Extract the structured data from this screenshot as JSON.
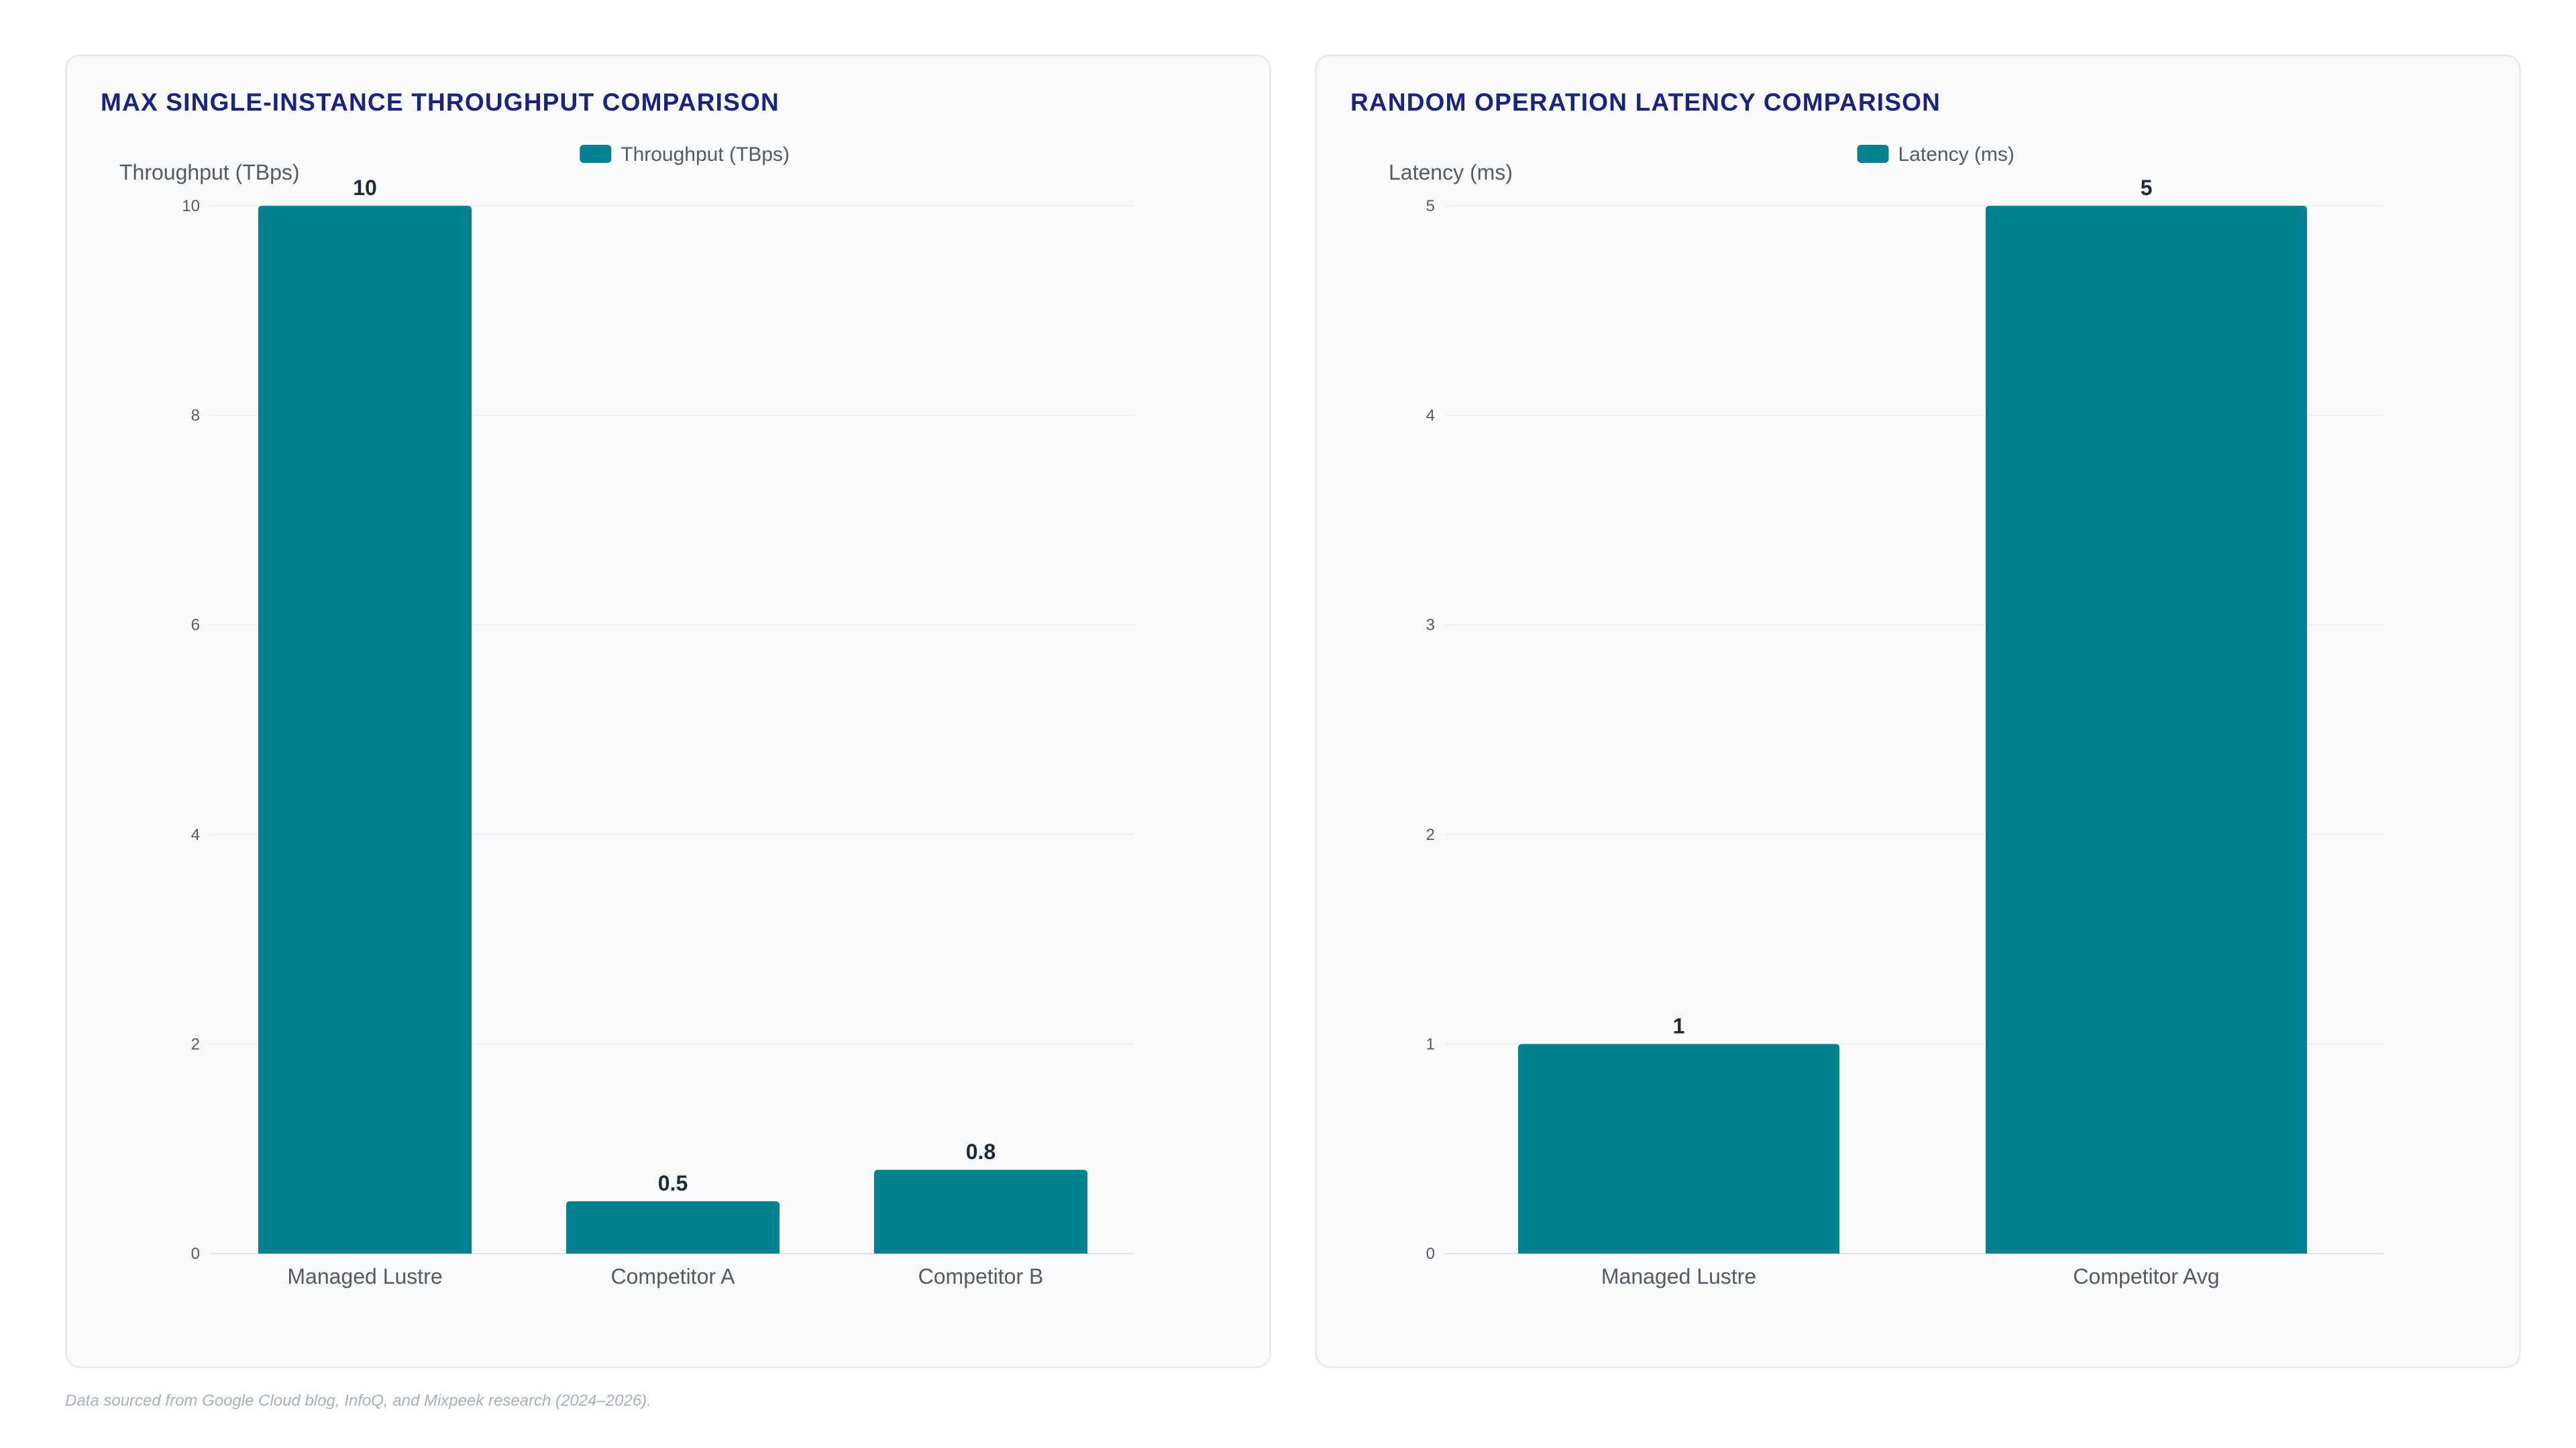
{
  "colors": {
    "bar": "#00838f",
    "grid": "#eceff3",
    "axis": "#dfe3e8"
  },
  "chart_data": [
    {
      "type": "bar",
      "title": "MAX SINGLE-INSTANCE THROUGHPUT COMPARISON",
      "ylabel": "Throughput (TBps)",
      "xlabel": "",
      "legend": {
        "placement": "top-center",
        "entries": [
          "Throughput (TBps)"
        ]
      },
      "categories": [
        "Managed Lustre",
        "Competitor A",
        "Competitor B"
      ],
      "series": [
        {
          "name": "Throughput (TBps)",
          "values": [
            10,
            0.5,
            0.8
          ]
        }
      ],
      "value_labels": [
        "10",
        "0.5",
        "0.8"
      ],
      "ylim": [
        0,
        10
      ],
      "yticks": [
        0,
        2,
        4,
        6,
        8,
        10
      ],
      "grid": true
    },
    {
      "type": "bar",
      "title": "RANDOM OPERATION LATENCY COMPARISON",
      "ylabel": "Latency (ms)",
      "xlabel": "",
      "legend": {
        "placement": "top-center",
        "entries": [
          "Latency (ms)"
        ]
      },
      "categories": [
        "Managed Lustre",
        "Competitor Avg"
      ],
      "series": [
        {
          "name": "Latency (ms)",
          "values": [
            1,
            5
          ]
        }
      ],
      "value_labels": [
        "1",
        "5"
      ],
      "ylim": [
        0,
        5
      ],
      "yticks": [
        0,
        1,
        2,
        3,
        4,
        5
      ],
      "grid": true
    }
  ],
  "footnote": "Data sourced from Google Cloud blog, InfoQ, and Mixpeek research (2024–2026)."
}
